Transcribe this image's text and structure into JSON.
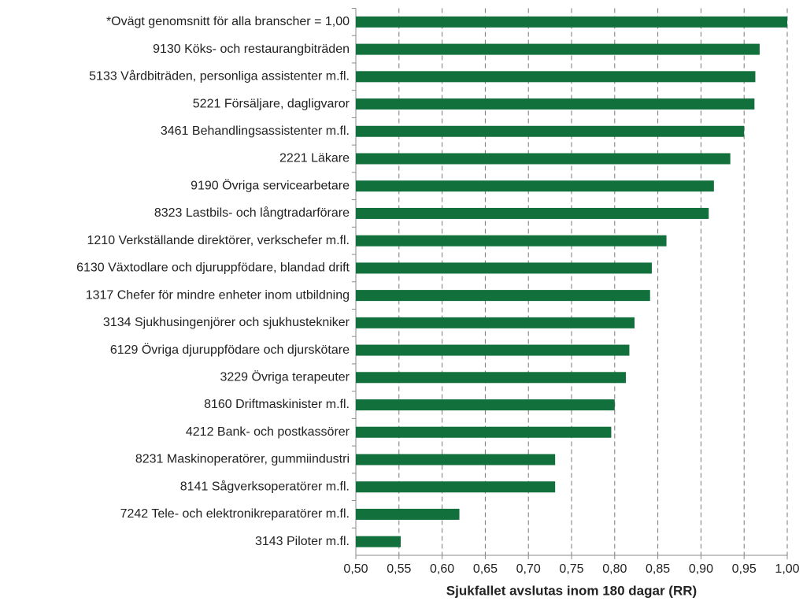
{
  "chart_data": {
    "type": "bar",
    "orientation": "horizontal",
    "x_label": "Sjukfallet avslutas inom 180 dagar (RR)",
    "categories": [
      "*Ovägt genomsnitt för alla branscher = 1,00",
      "9130 Köks- och restaurangbiträden",
      "5133 Vårdbiträden, personliga assistenter m.fl.",
      "5221 Försäljare, dagligvaror",
      "3461 Behandlingsassistenter m.fl.",
      "2221 Läkare",
      "9190 Övriga servicearbetare",
      "8323 Lastbils- och långtradarförare",
      "1210 Verkställande direktörer, verkschefer m.fl.",
      "6130 Växtodlare och djuruppfödare, blandad drift",
      "1317 Chefer för mindre enheter inom utbildning",
      "3134 Sjukhusingenjörer och sjukhustekniker",
      "6129 Övriga djuruppfödare och djurskötare",
      "3229 Övriga terapeuter",
      "8160 Driftmaskinister m.fl.",
      "4212 Bank- och postkassörer",
      "8231 Maskinoperatörer, gummiindustri",
      "8141 Sågverksoperatörer m.fl.",
      "7242 Tele- och elektronikreparatörer m.fl.",
      "3143 Piloter m.fl."
    ],
    "values": [
      1.0,
      0.968,
      0.963,
      0.962,
      0.95,
      0.934,
      0.915,
      0.909,
      0.86,
      0.843,
      0.841,
      0.823,
      0.817,
      0.813,
      0.8,
      0.796,
      0.731,
      0.731,
      0.62,
      0.552
    ],
    "color": "#11703b",
    "xlim": [
      0.5,
      1.0
    ],
    "xticks": [
      {
        "value": 0.5,
        "label": "0,50"
      },
      {
        "value": 0.55,
        "label": "0,55"
      },
      {
        "value": 0.6,
        "label": "0,60"
      },
      {
        "value": 0.65,
        "label": "0,65"
      },
      {
        "value": 0.7,
        "label": "0,70"
      },
      {
        "value": 0.75,
        "label": "0,75"
      },
      {
        "value": 0.8,
        "label": "0,80"
      },
      {
        "value": 0.85,
        "label": "0,85"
      },
      {
        "value": 0.9,
        "label": "0,90"
      },
      {
        "value": 0.95,
        "label": "0,95"
      },
      {
        "value": 1.0,
        "label": "1,00"
      }
    ],
    "grid": true
  }
}
